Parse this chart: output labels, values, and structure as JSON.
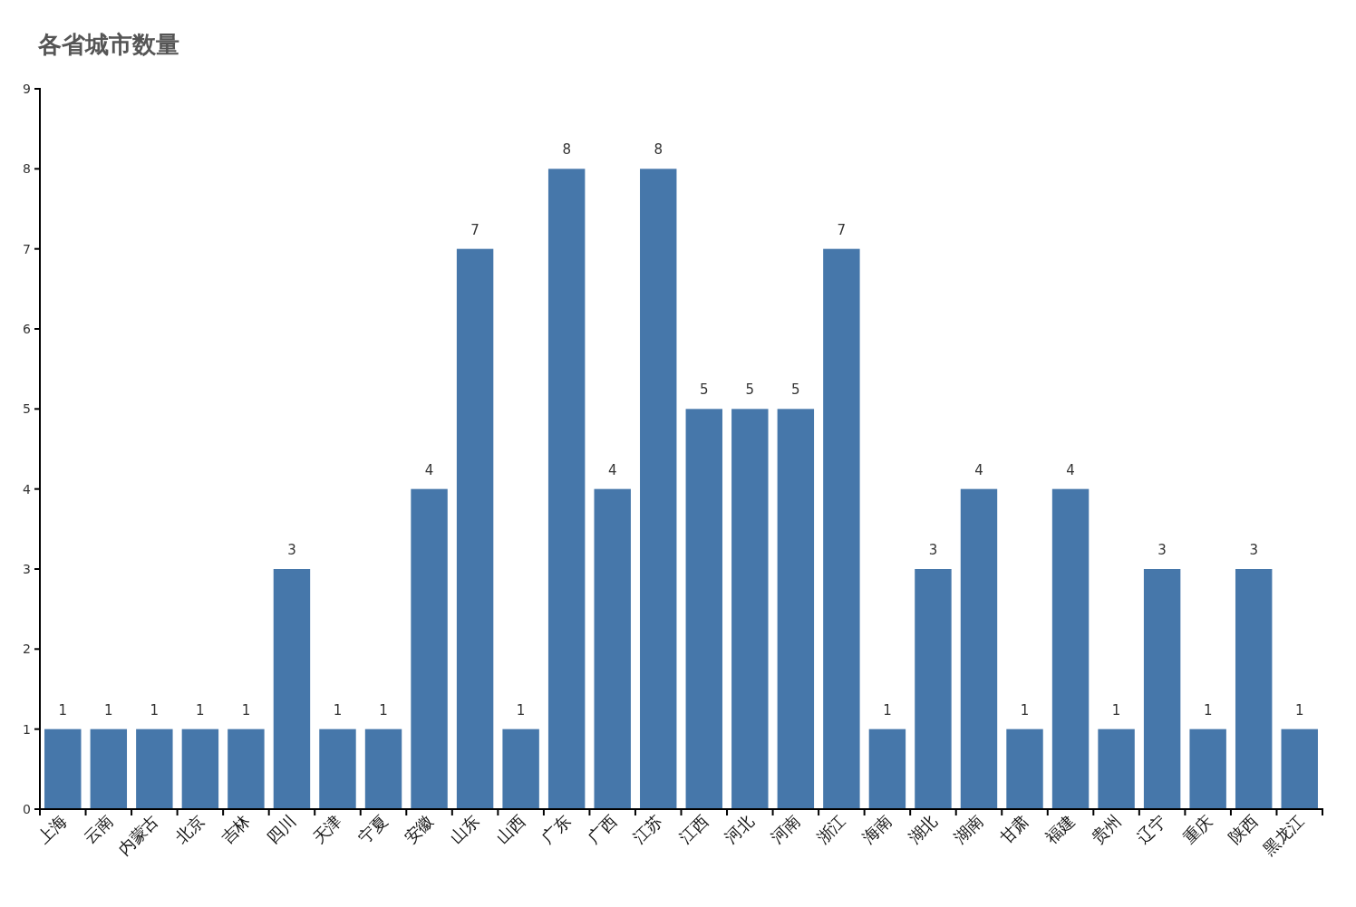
{
  "chart_data": {
    "type": "bar",
    "title": "各省城市数量",
    "categories": [
      "上海",
      "云南",
      "内蒙古",
      "北京",
      "吉林",
      "四川",
      "天津",
      "宁夏",
      "安徽",
      "山东",
      "山西",
      "广东",
      "广西",
      "江苏",
      "江西",
      "河北",
      "河南",
      "浙江",
      "海南",
      "湖北",
      "湖南",
      "甘肃",
      "福建",
      "贵州",
      "辽宁",
      "重庆",
      "陕西",
      "黑龙江"
    ],
    "values": [
      1,
      1,
      1,
      1,
      1,
      3,
      1,
      1,
      4,
      7,
      1,
      8,
      4,
      8,
      5,
      5,
      5,
      7,
      1,
      3,
      4,
      1,
      4,
      1,
      3,
      1,
      3,
      1
    ],
    "color": "#4677aa",
    "ylim": [
      0,
      9
    ],
    "yticks": [
      0,
      1,
      2,
      3,
      4,
      5,
      6,
      7,
      8,
      9
    ],
    "data_labels": true
  }
}
